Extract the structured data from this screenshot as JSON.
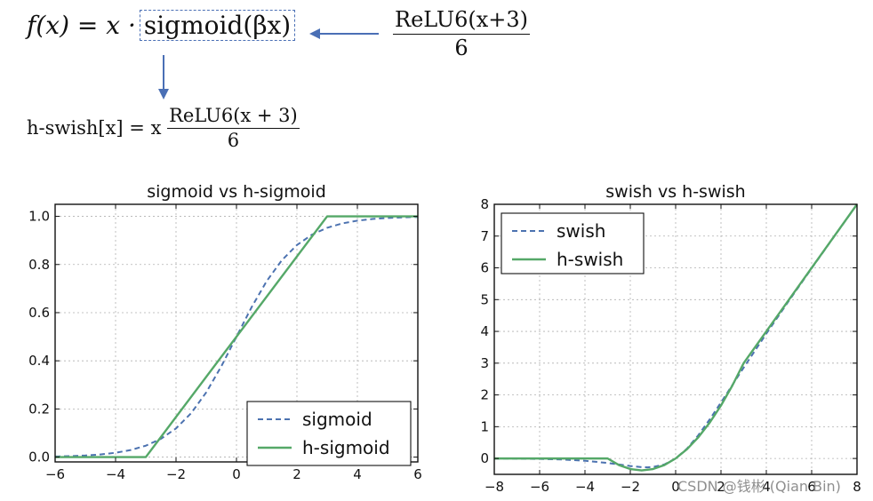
{
  "formulas": {
    "swish": {
      "lhs": "f(x) = x ·",
      "boxed": "sigmoid(βx)"
    },
    "relu_frac": {
      "num": "ReLU6(x+3)",
      "den": "6"
    },
    "hswish": {
      "lhs": "h-swish[x] = x",
      "num": "ReLU6(x + 3)",
      "den": "6"
    }
  },
  "watermark": "CSDN @钱彬 (Qian Bin)",
  "colors": {
    "dashed_series": "#4c72b0",
    "solid_series": "#55a868",
    "arrow": "#4a6fb5",
    "grid": "#b0b0b0"
  },
  "chart_data": [
    {
      "type": "line",
      "title": "sigmoid vs h-sigmoid",
      "xlabel": "",
      "ylabel": "",
      "xlim": [
        -6,
        6
      ],
      "ylim": [
        -0.02,
        1.05
      ],
      "xticks": [
        -6,
        -4,
        -2,
        0,
        2,
        4,
        6
      ],
      "xtick_labels": [
        "−6",
        "−4",
        "−2",
        "0",
        "2",
        "4",
        "6"
      ],
      "yticks": [
        0.0,
        0.2,
        0.4,
        0.6,
        0.8,
        1.0
      ],
      "ytick_labels": [
        "0.0",
        "0.2",
        "0.4",
        "0.6",
        "0.8",
        "1.0"
      ],
      "grid": true,
      "legend_position": "lower-right",
      "series": [
        {
          "name": "sigmoid",
          "style": "dashed",
          "x": [
            -6,
            -5.5,
            -5,
            -4.5,
            -4,
            -3.5,
            -3,
            -2.5,
            -2,
            -1.5,
            -1,
            -0.5,
            0,
            0.5,
            1,
            1.5,
            2,
            2.5,
            3,
            3.5,
            4,
            4.5,
            5,
            5.5,
            6
          ],
          "y": [
            0.0025,
            0.0041,
            0.0067,
            0.011,
            0.018,
            0.0293,
            0.0474,
            0.0759,
            0.1192,
            0.1824,
            0.2689,
            0.3775,
            0.5,
            0.6225,
            0.7311,
            0.8176,
            0.8808,
            0.9241,
            0.9526,
            0.9707,
            0.982,
            0.989,
            0.9933,
            0.9959,
            0.9975
          ]
        },
        {
          "name": "h-sigmoid",
          "style": "solid",
          "x": [
            -6,
            -3,
            3,
            6
          ],
          "y": [
            0,
            0,
            1,
            1
          ]
        }
      ]
    },
    {
      "type": "line",
      "title": "swish vs h-swish",
      "xlabel": "",
      "ylabel": "",
      "xlim": [
        -8,
        8
      ],
      "ylim": [
        -0.5,
        8
      ],
      "xticks": [
        -8,
        -6,
        -4,
        -2,
        0,
        2,
        4,
        6,
        8
      ],
      "xtick_labels": [
        "−8",
        "−6",
        "−4",
        "−2",
        "0",
        "2",
        "4",
        "6",
        "8"
      ],
      "yticks": [
        0,
        1,
        2,
        3,
        4,
        5,
        6,
        7,
        8
      ],
      "ytick_labels": [
        "0",
        "1",
        "2",
        "3",
        "4",
        "5",
        "6",
        "7",
        "8"
      ],
      "grid": true,
      "legend_position": "top-left",
      "series": [
        {
          "name": "swish",
          "style": "dashed",
          "x": [
            -8,
            -7,
            -6,
            -5,
            -4,
            -3,
            -2.5,
            -2,
            -1.5,
            -1.25,
            -1,
            -0.5,
            0,
            0.5,
            1,
            1.5,
            2,
            2.5,
            3,
            4,
            5,
            6,
            7,
            8
          ],
          "y": [
            -0.003,
            -0.006,
            -0.015,
            -0.033,
            -0.072,
            -0.142,
            -0.19,
            -0.238,
            -0.274,
            -0.279,
            -0.269,
            -0.189,
            0,
            0.311,
            0.731,
            1.226,
            1.762,
            2.31,
            2.858,
            3.928,
            4.967,
            5.985,
            6.994,
            7.997
          ]
        },
        {
          "name": "h-swish",
          "style": "solid",
          "x": [
            -8,
            -3,
            -2.5,
            -2,
            -1.5,
            -1,
            -0.5,
            0,
            0.5,
            1,
            1.5,
            2,
            2.5,
            3,
            8
          ],
          "y": [
            0,
            0,
            -0.208,
            -0.333,
            -0.375,
            -0.333,
            -0.208,
            0,
            0.292,
            0.667,
            1.125,
            1.667,
            2.292,
            3,
            8
          ]
        }
      ]
    }
  ]
}
